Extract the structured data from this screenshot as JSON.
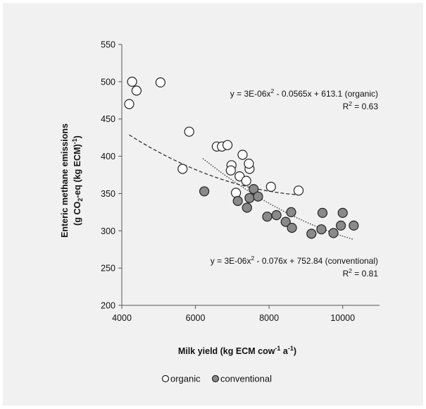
{
  "chart_data": {
    "type": "scatter",
    "xlabel": "Milk yield (kg ECM cow",
    "xlabel_sup": "-1",
    "xlabel_mid": " a",
    "xlabel_sup2": "-1",
    "xlabel_end": ")",
    "ylabel_line1": "Enteric methane emissions",
    "ylabel_line2_a": "(g CO",
    "ylabel_line2_sub": "2",
    "ylabel_line2_b": "-eq (kg ECM)",
    "ylabel_line2_sup": "-1",
    "ylabel_line2_c": ")",
    "xlim": [
      4000,
      11000
    ],
    "ylim": [
      200,
      550
    ],
    "x_ticks": [
      4000,
      6000,
      8000,
      10000
    ],
    "y_ticks": [
      200,
      250,
      300,
      350,
      400,
      450,
      500,
      550
    ],
    "x_tick_labels": [
      "4000",
      "6000",
      "8000",
      "10000"
    ],
    "y_tick_labels": [
      "200",
      "250",
      "300",
      "350",
      "400",
      "450",
      "500",
      "550"
    ],
    "grid": false,
    "legend_position": "bottom",
    "series": [
      {
        "name": "organic",
        "color": "#ffffff",
        "trendline": "dashed",
        "trend_fn": {
          "a": 3e-06,
          "b": -0.0565,
          "c": 613.1
        },
        "trend_range": [
          4200,
          8800
        ],
        "points": [
          [
            4200,
            470
          ],
          [
            4280,
            500
          ],
          [
            4400,
            488
          ],
          [
            5050,
            499
          ],
          [
            5650,
            383
          ],
          [
            5830,
            433
          ],
          [
            6580,
            413
          ],
          [
            6720,
            413
          ],
          [
            6870,
            415
          ],
          [
            6980,
            388
          ],
          [
            6960,
            381
          ],
          [
            7200,
            373
          ],
          [
            7280,
            402
          ],
          [
            7380,
            367
          ],
          [
            7470,
            383
          ],
          [
            7450,
            390
          ],
          [
            7100,
            351
          ],
          [
            8050,
            359
          ],
          [
            8800,
            354
          ]
        ]
      },
      {
        "name": "conventional",
        "color": "#8a8a8a",
        "trendline": "dotted",
        "trend_fn": {
          "a": 3e-06,
          "b": -0.076,
          "c": 752.84
        },
        "trend_range": [
          6200,
          10300
        ],
        "points": [
          [
            6240,
            353
          ],
          [
            7150,
            340
          ],
          [
            7400,
            331
          ],
          [
            7470,
            344
          ],
          [
            7580,
            356
          ],
          [
            7700,
            346
          ],
          [
            7950,
            319
          ],
          [
            8200,
            321
          ],
          [
            8450,
            312
          ],
          [
            8600,
            325
          ],
          [
            8620,
            304
          ],
          [
            9150,
            296
          ],
          [
            9420,
            302
          ],
          [
            9450,
            324
          ],
          [
            9750,
            297
          ],
          [
            9950,
            307
          ],
          [
            10000,
            324
          ],
          [
            10300,
            307
          ]
        ]
      }
    ],
    "annotations": {
      "organic_eq_main": "y = 3E-06x",
      "organic_eq_sup": "2",
      "organic_eq_rest": " - 0.0565x + 613.1 (organic)",
      "organic_r2_main": "R",
      "organic_r2_sup": "2",
      "organic_r2_rest": " = 0.63",
      "conv_eq_main": "y = 3E-06x",
      "conv_eq_sup": "2",
      "conv_eq_rest": " - 0.076x + 752.84 (conventional)",
      "conv_r2_main": "R",
      "conv_r2_sup": "2",
      "conv_r2_rest": " = 0.81"
    },
    "legend": [
      {
        "label": "organic",
        "color": "#ffffff"
      },
      {
        "label": "conventional",
        "color": "#8a8a8a"
      }
    ]
  }
}
